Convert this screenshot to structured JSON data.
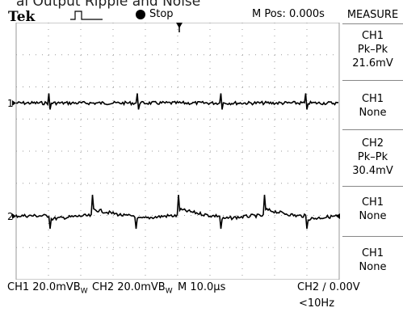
{
  "caption": "al Output Ripple and Noise",
  "header": {
    "brand": "Tek",
    "trigger_icon": "trigger-pulse-icon",
    "run_state": "Stop",
    "m_pos": "M Pos: 0.000s"
  },
  "measure_menu": {
    "title": "MEASURE",
    "items": [
      {
        "channel": "CH1",
        "type": "Pk–Pk",
        "value": "21.6mV"
      },
      {
        "channel": "CH1",
        "type": "None",
        "value": ""
      },
      {
        "channel": "CH2",
        "type": "Pk–Pk",
        "value": "30.4mV"
      },
      {
        "channel": "CH1",
        "type": "None",
        "value": ""
      },
      {
        "channel": "CH1",
        "type": "None",
        "value": ""
      }
    ]
  },
  "channels": {
    "ch1_marker": "1",
    "ch2_marker": "2"
  },
  "status_bar": {
    "ch1": "CH1  20.0mVB",
    "ch1_suffix": "W",
    "ch2": "CH2  20.0mVB",
    "ch2_suffix": "W",
    "timebase": "M 10.0µs",
    "trigger": "CH2 ∕ 0.00V",
    "freq": "<10Hz"
  },
  "colors": {
    "trace": "#000000",
    "grid": "#9a9a9a",
    "background": "#ffffff"
  }
}
